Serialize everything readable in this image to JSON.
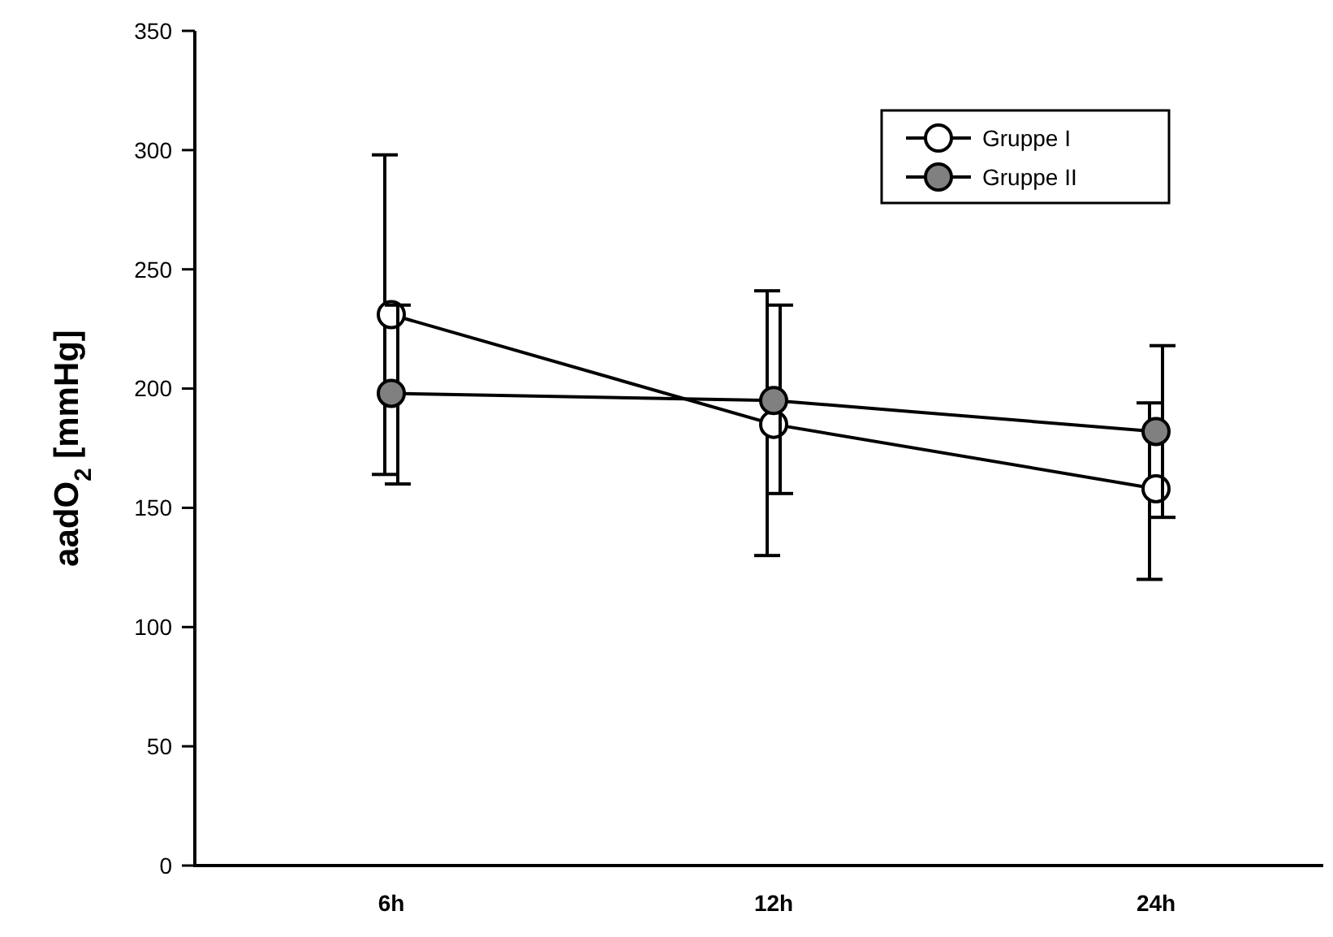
{
  "chart_data": {
    "type": "line",
    "ylabel": "aadO$_{2}$ [mmHg]",
    "categories": [
      "6h",
      "12h",
      "24h"
    ],
    "series": [
      {
        "name": "Gruppe I",
        "color": "#ffffff",
        "values": [
          231,
          185,
          158
        ],
        "errors": [
          [
            164,
            298
          ],
          [
            130,
            241
          ],
          [
            120,
            194
          ]
        ]
      },
      {
        "name": "Gruppe II",
        "color": "#808080",
        "values": [
          198,
          195,
          182
        ],
        "errors": [
          [
            160,
            235
          ],
          [
            156,
            235
          ],
          [
            146,
            218
          ]
        ]
      }
    ],
    "ylim": [
      0,
      350
    ],
    "yticks": [
      0,
      50,
      100,
      150,
      200,
      250,
      300,
      350
    ],
    "grid": false,
    "legend": "top right",
    "marker": "circle",
    "line_style": "solid"
  }
}
